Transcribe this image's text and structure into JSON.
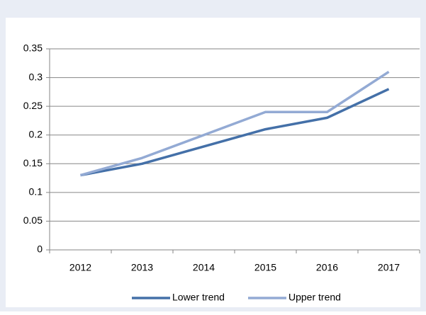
{
  "chart_data": {
    "type": "line",
    "categories": [
      "2012",
      "2013",
      "2014",
      "2015",
      "2016",
      "2017"
    ],
    "series": [
      {
        "name": "Lower trend",
        "color": "#4470a8",
        "values": [
          0.13,
          0.15,
          0.18,
          0.21,
          0.23,
          0.28
        ]
      },
      {
        "name": "Upper trend",
        "color": "#93aad4",
        "values": [
          0.13,
          0.16,
          0.2,
          0.24,
          0.24,
          0.31
        ]
      }
    ],
    "ylim": [
      0,
      0.35
    ],
    "yticks": [
      0,
      0.05,
      0.1,
      0.15,
      0.2,
      0.25,
      0.3,
      0.35
    ],
    "grid": true,
    "legend": "bottom"
  }
}
